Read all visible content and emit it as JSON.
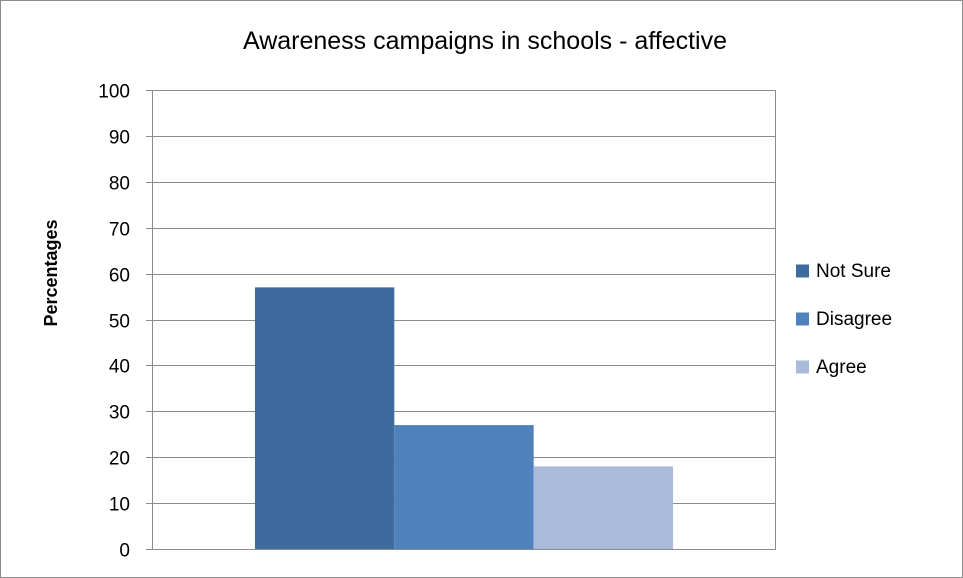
{
  "chart_data": {
    "type": "bar",
    "title": "Awareness campaigns in schools - affective",
    "ylabel": "Percentages",
    "xlabel": "",
    "categories": [
      ""
    ],
    "series": [
      {
        "name": "Not Sure",
        "values": [
          57
        ],
        "color": "#3f6a9e"
      },
      {
        "name": "Disagree",
        "values": [
          27
        ],
        "color": "#4f81bd"
      },
      {
        "name": "Agree",
        "values": [
          18
        ],
        "color": "#a9bbd9"
      }
    ],
    "ylim": [
      0,
      100
    ],
    "yticks": [
      "0",
      "10",
      "20",
      "30",
      "40",
      "50",
      "60",
      "70",
      "80",
      "90",
      "100"
    ],
    "grid": true,
    "legend_position": "right",
    "colors": {
      "gridline": "#8c8c8c",
      "axis": "#8c8c8c",
      "frame": "#8c8c8c"
    }
  }
}
